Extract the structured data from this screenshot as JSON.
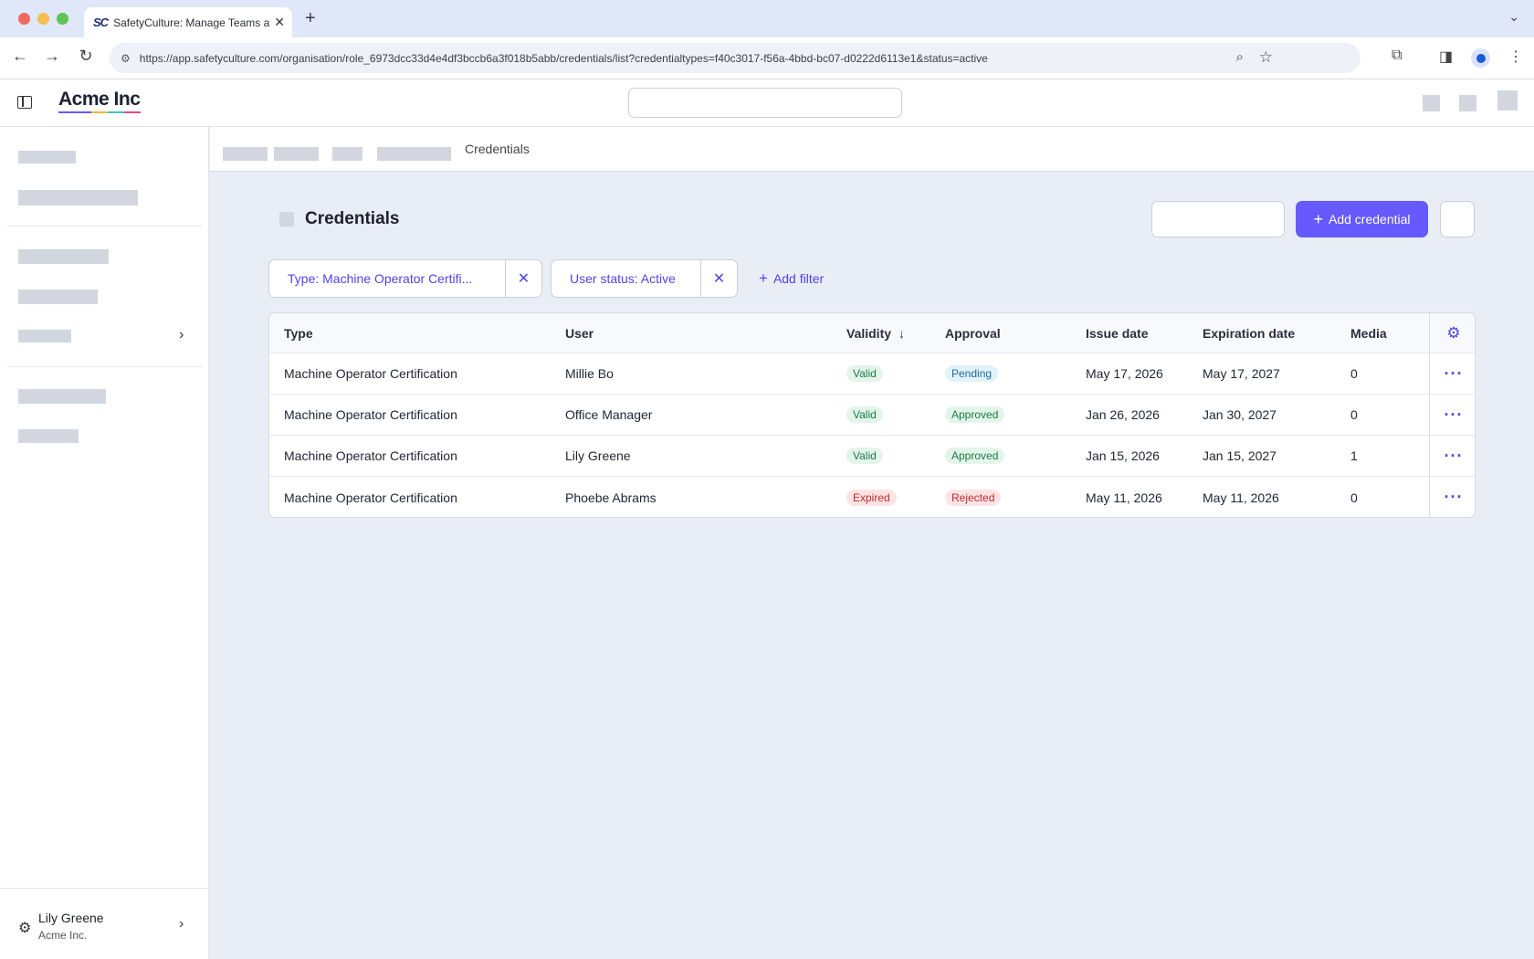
{
  "browser": {
    "tab_title": "SafetyCulture: Manage Teams and...",
    "tab_favicon": "SC",
    "url": "https://app.safetyculture.com/organisation/role_6973dcc33d4e4df3bccb6a3f018b5abb/credentials/list?credentialtypes=f40c3017-f56a-4bbd-bc07-d0222d6113e1&status=active"
  },
  "header": {
    "logo": "Acme Inc"
  },
  "sidebar": {
    "user_name": "Lily Greene",
    "org_name": "Acme Inc."
  },
  "breadcrumb": {
    "current": "Credentials"
  },
  "page": {
    "title": "Credentials",
    "add_button": "Add credential"
  },
  "filters": [
    {
      "label": "Type: Machine Operator Certifi..."
    },
    {
      "label": "User status: Active"
    }
  ],
  "add_filter": "Add filter",
  "table": {
    "columns": [
      "Type",
      "User",
      "Validity",
      "Approval",
      "Issue date",
      "Expiration date",
      "Media"
    ],
    "sort_indicator": "↓",
    "rows": [
      {
        "type": "Machine Operator Certification",
        "user": "Millie Bo",
        "validity": "Valid",
        "approval": "Pending",
        "issue": "May 17, 2026",
        "expiration": "May 17, 2027",
        "media": "0"
      },
      {
        "type": "Machine Operator Certification",
        "user": "Office Manager",
        "validity": "Valid",
        "approval": "Approved",
        "issue": "Jan 26, 2026",
        "expiration": "Jan 30, 2027",
        "media": "0"
      },
      {
        "type": "Machine Operator Certification",
        "user": "Lily Greene",
        "validity": "Valid",
        "approval": "Approved",
        "issue": "Jan 15, 2026",
        "expiration": "Jan 15, 2027",
        "media": "1"
      },
      {
        "type": "Machine Operator Certification",
        "user": "Phoebe Abrams",
        "validity": "Expired",
        "approval": "Rejected",
        "issue": "May 11, 2026",
        "expiration": "May 11, 2026",
        "media": "0"
      }
    ]
  },
  "colors": {
    "accent": "#6559ff",
    "link": "#4f44e0",
    "page_bg": "#e9edf6"
  }
}
